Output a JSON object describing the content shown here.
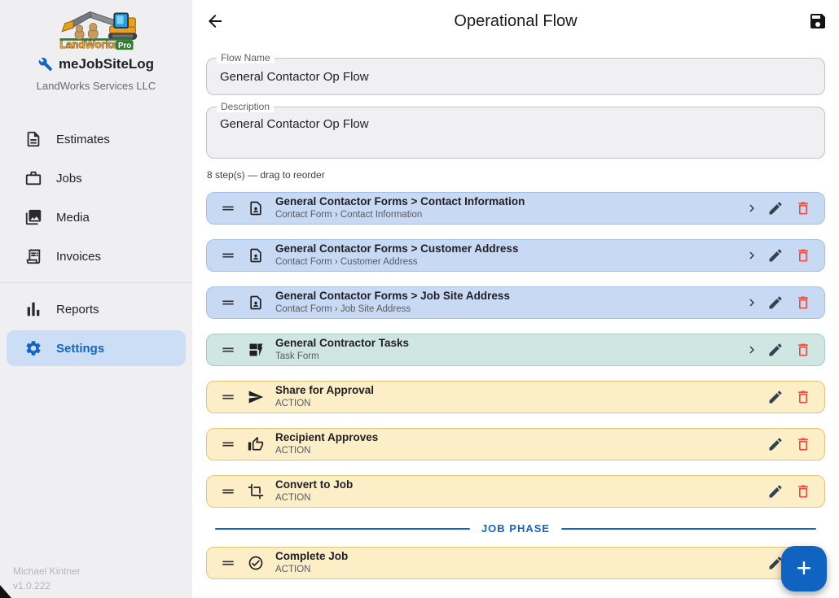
{
  "sidebar": {
    "logo": {
      "brand": "LandWorks",
      "badge": "Pro"
    },
    "app_name": "meJobSiteLog",
    "company": "LandWorks Services LLC",
    "items": [
      {
        "label": "Estimates",
        "icon": "document",
        "active": false,
        "divider_before": false
      },
      {
        "label": "Jobs",
        "icon": "briefcase",
        "active": false,
        "divider_before": false
      },
      {
        "label": "Media",
        "icon": "photo-library",
        "active": false,
        "divider_before": false
      },
      {
        "label": "Invoices",
        "icon": "receipt",
        "active": false,
        "divider_before": false
      },
      {
        "label": "Reports",
        "icon": "bar-chart",
        "active": false,
        "divider_before": true
      },
      {
        "label": "Settings",
        "icon": "gear",
        "active": true,
        "divider_before": false
      }
    ],
    "footer": {
      "user": "Michael Kintner",
      "version": "v1.0.222"
    }
  },
  "header": {
    "title": "Operational Flow"
  },
  "form": {
    "flow_name": {
      "label": "Flow Name",
      "value": "General Contactor Op Flow"
    },
    "description": {
      "label": "Description",
      "value": "General Contactor Op Flow"
    }
  },
  "steps": {
    "summary": "8 step(s) — drag to reorder",
    "phase_divider": {
      "label": "JOB PHASE",
      "before_index": 7
    },
    "items": [
      {
        "title": "General Contactor Forms > Contact Information",
        "subtitle": "Contact Form › Contact Information",
        "icon": "contact-page",
        "variant": "blue",
        "chevron": true
      },
      {
        "title": "General Contactor Forms > Customer Address",
        "subtitle": "Contact Form › Customer Address",
        "icon": "contact-page",
        "variant": "blue",
        "chevron": true
      },
      {
        "title": "General Contactor Forms > Job Site Address",
        "subtitle": "Contact Form › Job Site Address",
        "icon": "contact-page",
        "variant": "blue",
        "chevron": true
      },
      {
        "title": "General Contractor Tasks",
        "subtitle": "Task Form",
        "icon": "dynamic-form",
        "variant": "teal",
        "chevron": true
      },
      {
        "title": "Share for Approval",
        "subtitle": "ACTION",
        "icon": "send",
        "variant": "yellow",
        "chevron": false
      },
      {
        "title": "Recipient Approves",
        "subtitle": "ACTION",
        "icon": "thumb-up",
        "variant": "yellow",
        "chevron": false
      },
      {
        "title": "Convert to Job",
        "subtitle": "ACTION",
        "icon": "crop",
        "variant": "yellow",
        "chevron": false
      },
      {
        "title": "Complete Job",
        "subtitle": "ACTION",
        "icon": "check-circle",
        "variant": "yellow",
        "chevron": false
      }
    ]
  },
  "fab": {
    "label": "+"
  },
  "colors": {
    "accent_blue": "#1565c0",
    "row_blue": "#c8daf3",
    "row_teal": "#cfe6e3",
    "row_yellow": "#fceec7",
    "delete_red": "#f14b3e",
    "sidebar_bg": "#efeff2"
  }
}
